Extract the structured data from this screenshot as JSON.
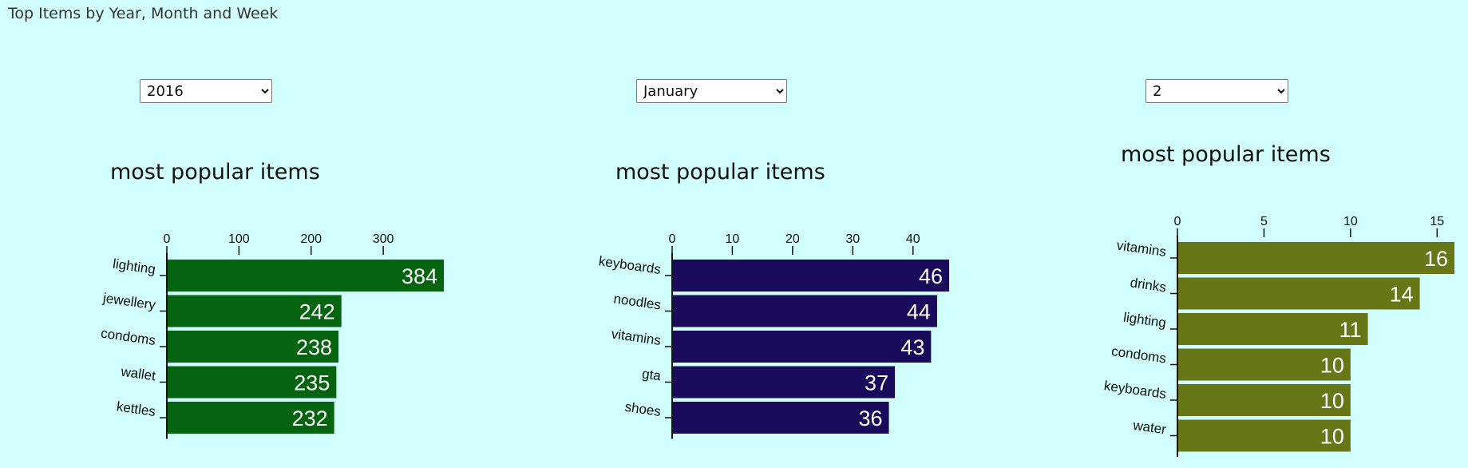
{
  "page": {
    "title": "Top Items by Year, Month and Week"
  },
  "selectors": {
    "year": {
      "value": "2016",
      "options": [
        "2016"
      ]
    },
    "month": {
      "value": "January",
      "options": [
        "January"
      ]
    },
    "week": {
      "value": "2",
      "options": [
        "2"
      ]
    }
  },
  "chart_data": [
    {
      "type": "bar",
      "orientation": "horizontal",
      "title": "most popular items",
      "color": "#04640f",
      "categories": [
        "lighting",
        "jewellery",
        "condoms",
        "wallet",
        "kettles"
      ],
      "values": [
        384,
        242,
        238,
        235,
        232
      ],
      "xticks": [
        0,
        100,
        200,
        300
      ],
      "xlim": [
        0,
        384
      ],
      "axis_position": "top",
      "data_labels": true
    },
    {
      "type": "bar",
      "orientation": "horizontal",
      "title": "most popular items",
      "color": "#1a0a5c",
      "categories": [
        "keyboards",
        "noodles",
        "vitamins",
        "gta",
        "shoes"
      ],
      "values": [
        46,
        44,
        43,
        37,
        36
      ],
      "xticks": [
        0,
        10,
        20,
        30,
        40
      ],
      "xlim": [
        0,
        46
      ],
      "axis_position": "top",
      "data_labels": true
    },
    {
      "type": "bar",
      "orientation": "horizontal",
      "title": "most popular items",
      "color": "#677617",
      "categories": [
        "vitamins",
        "drinks",
        "lighting",
        "condoms",
        "keyboards",
        "water"
      ],
      "values": [
        16,
        14,
        11,
        10,
        10,
        10
      ],
      "xticks": [
        0,
        5,
        10,
        15
      ],
      "xlim": [
        0,
        16
      ],
      "axis_position": "top",
      "data_labels": true
    }
  ]
}
